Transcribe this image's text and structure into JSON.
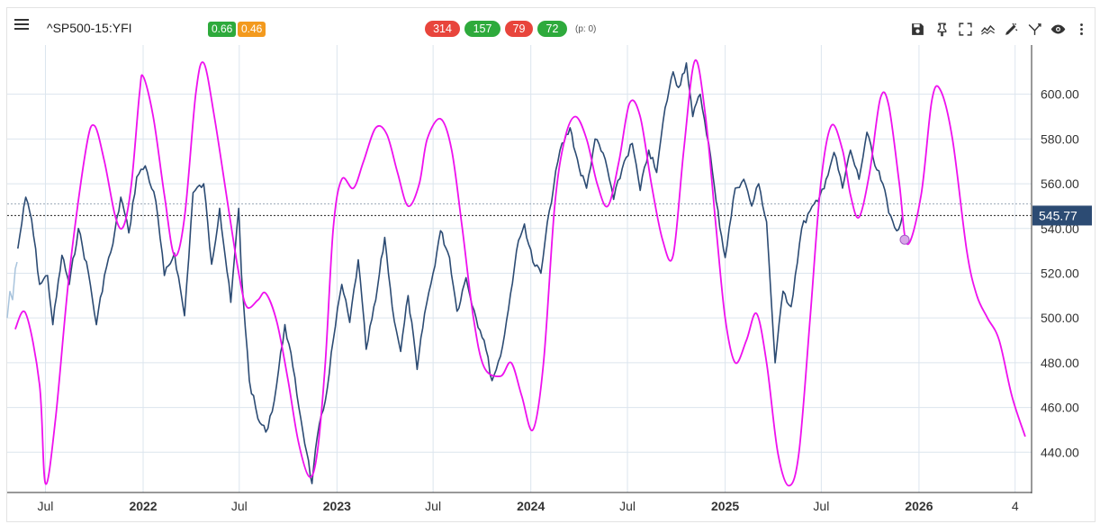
{
  "header": {
    "symbol": "^SP500-15:YFI",
    "badges": [
      {
        "label": "0.66",
        "color": "#2eaa3c"
      },
      {
        "label": "0.46",
        "color": "#f39a1e"
      }
    ],
    "counts": [
      {
        "label": "314",
        "color": "#e8453c"
      },
      {
        "label": "157",
        "color": "#2eaa3c"
      },
      {
        "label": "79",
        "color": "#e8453c"
      },
      {
        "label": "72",
        "color": "#2eaa3c"
      }
    ],
    "p_label": "(p: 0)",
    "tools": [
      "save-icon",
      "pin-icon",
      "fullscreen-icon",
      "trend-icon",
      "draw-icon",
      "branch-icon",
      "eye-icon",
      "more-icon"
    ]
  },
  "chart_data": {
    "type": "line",
    "y_ticks": [
      440,
      460,
      480,
      500,
      520,
      540,
      560,
      580,
      600
    ],
    "y_tick_labels": [
      "440.00",
      "460.00",
      "480.00",
      "500.00",
      "520.00",
      "540.00",
      "560.00",
      "580.00",
      "600.00"
    ],
    "ylim": [
      422,
      622
    ],
    "y_axis_position": "right",
    "x_ticks": [
      {
        "date": "2021-07-01",
        "label": "Jul",
        "bold": false
      },
      {
        "date": "2022-01-01",
        "label": "2022",
        "bold": true
      },
      {
        "date": "2022-07-01",
        "label": "Jul",
        "bold": false
      },
      {
        "date": "2023-01-01",
        "label": "2023",
        "bold": true
      },
      {
        "date": "2023-07-01",
        "label": "Jul",
        "bold": false
      },
      {
        "date": "2024-01-01",
        "label": "2024",
        "bold": true
      },
      {
        "date": "2024-07-01",
        "label": "Jul",
        "bold": false
      },
      {
        "date": "2025-01-01",
        "label": "2025",
        "bold": true
      },
      {
        "date": "2025-07-01",
        "label": "Jul",
        "bold": false
      },
      {
        "date": "2026-01-01",
        "label": "2026",
        "bold": true
      },
      {
        "date": "2026-07-01",
        "label": "4",
        "bold": false
      }
    ],
    "x_range": [
      "2021-04-20",
      "2026-08-01"
    ],
    "grid": true,
    "last_price": 545.77,
    "last_price_label": "545.77",
    "last_price_color": "#2c4b73",
    "secondary_level": 551,
    "series": [
      {
        "role": "price",
        "color": "#2c4b73",
        "points": [
          [
            "2021-05-10",
            531
          ],
          [
            "2021-05-25",
            554
          ],
          [
            "2021-06-05",
            544
          ],
          [
            "2021-06-20",
            515
          ],
          [
            "2021-07-05",
            519
          ],
          [
            "2021-07-15",
            497
          ],
          [
            "2021-08-01",
            528
          ],
          [
            "2021-08-15",
            515
          ],
          [
            "2021-09-01",
            540
          ],
          [
            "2021-09-20",
            520
          ],
          [
            "2021-10-05",
            497
          ],
          [
            "2021-10-20",
            519
          ],
          [
            "2021-11-05",
            533
          ],
          [
            "2021-11-20",
            554
          ],
          [
            "2021-12-05",
            538
          ],
          [
            "2021-12-20",
            563
          ],
          [
            "2022-01-05",
            568
          ],
          [
            "2022-01-25",
            552
          ],
          [
            "2022-02-10",
            519
          ],
          [
            "2022-03-01",
            529
          ],
          [
            "2022-03-20",
            501
          ],
          [
            "2022-04-05",
            556
          ],
          [
            "2022-04-25",
            560
          ],
          [
            "2022-05-10",
            524
          ],
          [
            "2022-05-25",
            549
          ],
          [
            "2022-06-15",
            507
          ],
          [
            "2022-06-30",
            549
          ],
          [
            "2022-07-05",
            520
          ],
          [
            "2022-07-20",
            472
          ],
          [
            "2022-08-05",
            455
          ],
          [
            "2022-08-20",
            449
          ],
          [
            "2022-09-05",
            463
          ],
          [
            "2022-09-25",
            497
          ],
          [
            "2022-10-10",
            478
          ],
          [
            "2022-10-25",
            455
          ],
          [
            "2022-11-05",
            440
          ],
          [
            "2022-11-15",
            426
          ],
          [
            "2022-11-25",
            447
          ],
          [
            "2022-12-10",
            463
          ],
          [
            "2022-12-25",
            490
          ],
          [
            "2023-01-10",
            515
          ],
          [
            "2023-01-25",
            498
          ],
          [
            "2023-02-10",
            526
          ],
          [
            "2023-02-25",
            486
          ],
          [
            "2023-03-15",
            508
          ],
          [
            "2023-04-01",
            536
          ],
          [
            "2023-04-15",
            505
          ],
          [
            "2023-05-01",
            485
          ],
          [
            "2023-05-15",
            510
          ],
          [
            "2023-06-01",
            477
          ],
          [
            "2023-06-15",
            502
          ],
          [
            "2023-07-01",
            520
          ],
          [
            "2023-07-15",
            539
          ],
          [
            "2023-08-01",
            527
          ],
          [
            "2023-08-15",
            503
          ],
          [
            "2023-09-01",
            518
          ],
          [
            "2023-09-20",
            500
          ],
          [
            "2023-10-05",
            490
          ],
          [
            "2023-10-20",
            472
          ],
          [
            "2023-11-05",
            483
          ],
          [
            "2023-11-20",
            504
          ],
          [
            "2023-12-05",
            530
          ],
          [
            "2023-12-20",
            542
          ],
          [
            "2024-01-05",
            525
          ],
          [
            "2024-01-20",
            520
          ],
          [
            "2024-02-05",
            548
          ],
          [
            "2024-02-25",
            575
          ],
          [
            "2024-03-15",
            585
          ],
          [
            "2024-04-01",
            567
          ],
          [
            "2024-04-15",
            558
          ],
          [
            "2024-05-01",
            580
          ],
          [
            "2024-05-20",
            571
          ],
          [
            "2024-06-05",
            553
          ],
          [
            "2024-06-25",
            570
          ],
          [
            "2024-07-10",
            578
          ],
          [
            "2024-07-25",
            557
          ],
          [
            "2024-08-10",
            575
          ],
          [
            "2024-08-25",
            565
          ],
          [
            "2024-09-10",
            594
          ],
          [
            "2024-09-25",
            610
          ],
          [
            "2024-10-05",
            603
          ],
          [
            "2024-10-20",
            614
          ],
          [
            "2024-11-01",
            590
          ],
          [
            "2024-11-15",
            600
          ],
          [
            "2024-12-01",
            578
          ],
          [
            "2024-12-15",
            552
          ],
          [
            "2025-01-01",
            527
          ],
          [
            "2025-01-20",
            558
          ],
          [
            "2025-02-05",
            562
          ],
          [
            "2025-02-20",
            550
          ],
          [
            "2025-03-05",
            560
          ],
          [
            "2025-03-20",
            543
          ],
          [
            "2025-04-05",
            480
          ],
          [
            "2025-04-20",
            512
          ],
          [
            "2025-05-05",
            505
          ],
          [
            "2025-05-25",
            540
          ],
          [
            "2025-06-10",
            548
          ],
          [
            "2025-06-25",
            552
          ],
          [
            "2025-07-10",
            562
          ],
          [
            "2025-07-25",
            574
          ],
          [
            "2025-08-10",
            558
          ],
          [
            "2025-08-25",
            575
          ],
          [
            "2025-09-10",
            562
          ],
          [
            "2025-09-25",
            583
          ],
          [
            "2025-10-10",
            568
          ],
          [
            "2025-10-25",
            560
          ],
          [
            "2025-11-05",
            547
          ],
          [
            "2025-11-20",
            539
          ],
          [
            "2025-12-01",
            545.77
          ]
        ]
      },
      {
        "role": "projection",
        "color": "#ee11ee",
        "points": [
          [
            "2021-05-05",
            495
          ],
          [
            "2021-05-25",
            502
          ],
          [
            "2021-06-20",
            470
          ],
          [
            "2021-07-01",
            426
          ],
          [
            "2021-07-20",
            455
          ],
          [
            "2021-08-15",
            520
          ],
          [
            "2021-09-15",
            575
          ],
          [
            "2021-10-01",
            586
          ],
          [
            "2021-10-20",
            570
          ],
          [
            "2021-11-10",
            545
          ],
          [
            "2021-11-25",
            541
          ],
          [
            "2021-12-10",
            560
          ],
          [
            "2021-12-25",
            600
          ],
          [
            "2022-01-01",
            608
          ],
          [
            "2022-01-20",
            590
          ],
          [
            "2022-02-10",
            555
          ],
          [
            "2022-03-01",
            528
          ],
          [
            "2022-03-20",
            545
          ],
          [
            "2022-04-10",
            600
          ],
          [
            "2022-04-25",
            614
          ],
          [
            "2022-05-15",
            590
          ],
          [
            "2022-06-10",
            550
          ],
          [
            "2022-06-30",
            520
          ],
          [
            "2022-07-15",
            505
          ],
          [
            "2022-08-05",
            508
          ],
          [
            "2022-08-20",
            511
          ],
          [
            "2022-09-10",
            498
          ],
          [
            "2022-10-01",
            472
          ],
          [
            "2022-10-20",
            445
          ],
          [
            "2022-11-10",
            429
          ],
          [
            "2022-11-25",
            440
          ],
          [
            "2022-12-10",
            480
          ],
          [
            "2022-12-25",
            540
          ],
          [
            "2023-01-10",
            562
          ],
          [
            "2023-02-01",
            558
          ],
          [
            "2023-02-20",
            570
          ],
          [
            "2023-03-15",
            585
          ],
          [
            "2023-04-05",
            582
          ],
          [
            "2023-04-25",
            565
          ],
          [
            "2023-05-15",
            550
          ],
          [
            "2023-06-05",
            560
          ],
          [
            "2023-06-20",
            580
          ],
          [
            "2023-07-15",
            589
          ],
          [
            "2023-08-05",
            575
          ],
          [
            "2023-08-25",
            540
          ],
          [
            "2023-09-15",
            500
          ],
          [
            "2023-10-05",
            478
          ],
          [
            "2023-11-05",
            474
          ],
          [
            "2023-11-25",
            480
          ],
          [
            "2023-12-15",
            465
          ],
          [
            "2024-01-05",
            450
          ],
          [
            "2024-01-25",
            480
          ],
          [
            "2024-02-15",
            550
          ],
          [
            "2024-03-05",
            580
          ],
          [
            "2024-03-25",
            590
          ],
          [
            "2024-04-15",
            580
          ],
          [
            "2024-05-05",
            560
          ],
          [
            "2024-05-25",
            550
          ],
          [
            "2024-06-15",
            570
          ],
          [
            "2024-07-05",
            596
          ],
          [
            "2024-07-25",
            590
          ],
          [
            "2024-08-15",
            560
          ],
          [
            "2024-09-05",
            535
          ],
          [
            "2024-09-25",
            528
          ],
          [
            "2024-10-15",
            575
          ],
          [
            "2024-11-05",
            615
          ],
          [
            "2024-11-25",
            590
          ],
          [
            "2024-12-15",
            540
          ],
          [
            "2025-01-01",
            500
          ],
          [
            "2025-01-20",
            480
          ],
          [
            "2025-02-10",
            490
          ],
          [
            "2025-03-01",
            502
          ],
          [
            "2025-03-20",
            480
          ],
          [
            "2025-04-10",
            440
          ],
          [
            "2025-05-01",
            425
          ],
          [
            "2025-05-20",
            440
          ],
          [
            "2025-06-10",
            500
          ],
          [
            "2025-06-30",
            560
          ],
          [
            "2025-07-20",
            586
          ],
          [
            "2025-08-10",
            575
          ],
          [
            "2025-08-25",
            555
          ],
          [
            "2025-09-10",
            545
          ],
          [
            "2025-09-30",
            565
          ],
          [
            "2025-10-20",
            598
          ],
          [
            "2025-11-05",
            595
          ],
          [
            "2025-11-25",
            560
          ],
          [
            "2025-12-10",
            533
          ],
          [
            "2026-01-05",
            555
          ],
          [
            "2026-01-25",
            597
          ],
          [
            "2026-02-10",
            602
          ],
          [
            "2026-03-05",
            580
          ],
          [
            "2026-04-01",
            530
          ],
          [
            "2026-04-20",
            510
          ],
          [
            "2026-05-10",
            500
          ],
          [
            "2026-06-01",
            490
          ],
          [
            "2026-06-25",
            465
          ],
          [
            "2026-07-20",
            447
          ]
        ]
      }
    ]
  }
}
